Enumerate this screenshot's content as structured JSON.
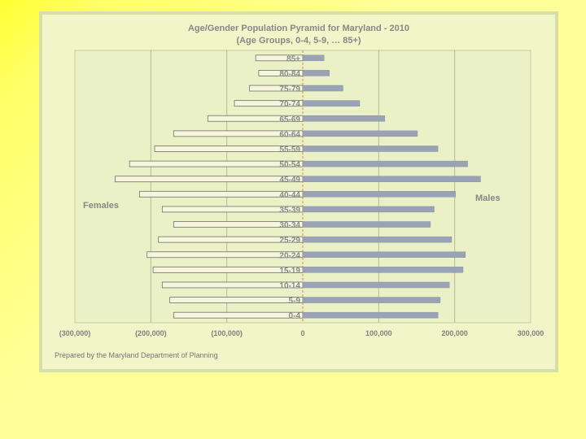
{
  "chart_data": {
    "type": "bar",
    "orientation": "horizontal",
    "title": "Age/Gender Population Pyramid for Maryland - 2010",
    "subtitle": "(Age Groups, 0-4, 5-9, … 85+)",
    "categories": [
      "0-4",
      "5-9",
      "10-14",
      "15-19",
      "20-24",
      "25-29",
      "30-34",
      "35-39",
      "40-44",
      "45-49",
      "50-54",
      "55-59",
      "60-64",
      "65-69",
      "70-74",
      "75-79",
      "80-84",
      "85+"
    ],
    "series": [
      {
        "name": "Females",
        "color": "#f6f6dc",
        "values": [
          -170000,
          -175000,
          -185000,
          -197000,
          -205000,
          -190000,
          -170000,
          -185000,
          -215000,
          -247000,
          -228000,
          -195000,
          -170000,
          -125000,
          -90000,
          -70000,
          -58000,
          -62000
        ]
      },
      {
        "name": "Males",
        "color": "#9aa3b5",
        "values": [
          178000,
          181000,
          193000,
          211000,
          214000,
          196000,
          168000,
          173000,
          201000,
          234000,
          217000,
          178000,
          151000,
          108000,
          75000,
          53000,
          35000,
          28000
        ]
      }
    ],
    "xlim": [
      -300000,
      300000
    ],
    "xticks": [
      -300000,
      -200000,
      -100000,
      0,
      100000,
      200000,
      300000
    ],
    "xtick_labels": [
      "(300,000)",
      "(200,000)",
      "(100,000)",
      "0",
      "100,000",
      "200,000",
      "300,000"
    ],
    "grid": true
  },
  "footnote": "Prepared by the Maryland Department of Planning"
}
